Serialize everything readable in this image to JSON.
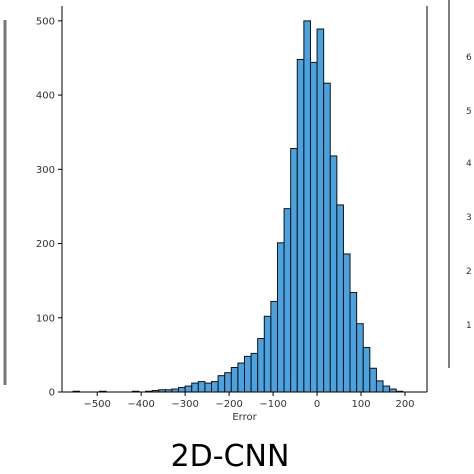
{
  "panel": {
    "caption": "2D-CNN"
  },
  "colors": {
    "bar_fill": "#4aa3e0",
    "bar_edge": "#111111",
    "axis": "#000000"
  },
  "chart_data": {
    "type": "bar",
    "title": "",
    "xlabel": "Error",
    "ylabel": "",
    "xlim": [
      -580,
      250
    ],
    "ylim": [
      0,
      520
    ],
    "grid": false,
    "xticks": [
      -500,
      -400,
      -300,
      -200,
      -100,
      0,
      100,
      200
    ],
    "xtick_labels": [
      "−500",
      "−400",
      "−300",
      "−200",
      "−100",
      "0",
      "100",
      "200"
    ],
    "yticks": [
      0,
      100,
      200,
      300,
      400,
      500
    ],
    "ytick_labels": [
      "0",
      "100",
      "200",
      "300",
      "400",
      "500"
    ],
    "bin_width": 15,
    "bin_start": -555,
    "values": [
      1,
      0,
      0,
      0,
      1,
      0,
      0,
      0,
      0,
      1,
      0,
      1,
      2,
      3,
      3,
      4,
      6,
      8,
      12,
      14,
      12,
      14,
      22,
      26,
      33,
      39,
      48,
      52,
      72,
      102,
      122,
      201,
      247,
      328,
      448,
      500,
      444,
      489,
      416,
      318,
      252,
      186,
      134,
      92,
      60,
      32,
      15,
      8,
      4,
      1
    ]
  },
  "neighbors": {
    "right_partial_ticks": [
      "6",
      "5",
      "4",
      "3",
      "2",
      "1"
    ]
  }
}
